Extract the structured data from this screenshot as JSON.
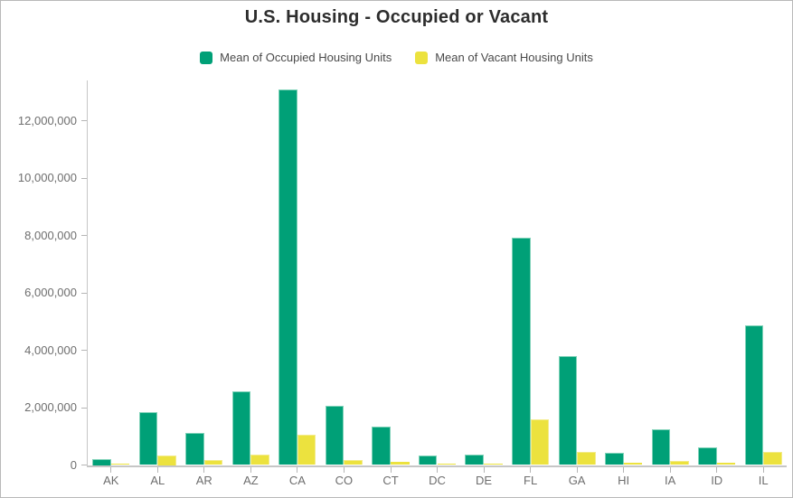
{
  "chart": {
    "title": "U.S. Housing - Occupied or Vacant"
  },
  "chart_data": {
    "type": "bar",
    "title": "U.S. Housing - Occupied or Vacant",
    "categories": [
      "AK",
      "AL",
      "AR",
      "AZ",
      "CA",
      "CO",
      "CT",
      "DC",
      "DE",
      "FL",
      "GA",
      "HI",
      "IA",
      "ID",
      "IL"
    ],
    "series": [
      {
        "name": "Mean of Occupied Housing Units",
        "color": "#00a077",
        "edge_color": "#7fd2b8",
        "values": [
          220000,
          1840000,
          1110000,
          2570000,
          13100000,
          2070000,
          1330000,
          340000,
          370000,
          7930000,
          3790000,
          420000,
          1240000,
          600000,
          4860000
        ]
      },
      {
        "name": "Mean of Vacant Housing Units",
        "color": "#ece23e",
        "edge_color": "#f3eb8a",
        "values": [
          55000,
          330000,
          160000,
          360000,
          1050000,
          180000,
          100000,
          40000,
          55000,
          1580000,
          460000,
          70000,
          130000,
          65000,
          450000
        ]
      }
    ],
    "xlabel": "",
    "ylabel": "",
    "ylim": [
      0,
      13400000
    ],
    "y_ticks": [
      0,
      2000000,
      4000000,
      6000000,
      8000000,
      10000000,
      12000000
    ],
    "y_tick_labels": [
      "0",
      "2,000,000",
      "4,000,000",
      "6,000,000",
      "8,000,000",
      "10,000,000",
      "12,000,000"
    ],
    "grid": false,
    "legend_position": "top"
  },
  "colors": {
    "accent_green": "#00a077",
    "accent_yellow": "#ece23e",
    "title_text": "#2d2d2d",
    "legend_text": "#4a4a4a",
    "axis_text": "#6e6e6e",
    "axis_line": "#c6c6c6",
    "tick_mark": "#b5b5b5",
    "card_border": "#b9b9b9"
  }
}
